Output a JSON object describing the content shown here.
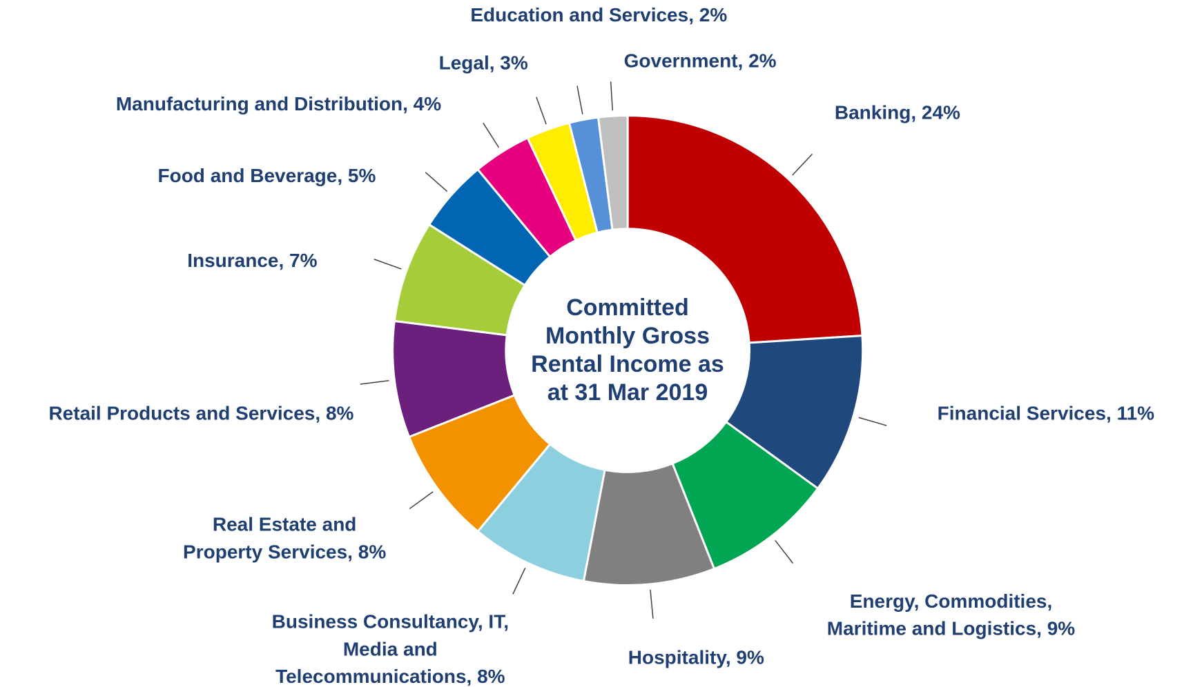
{
  "chart_data": {
    "type": "donut",
    "title": "Committed Monthly Gross Rental Income as at 31 Mar 2019",
    "values": [
      24,
      11,
      9,
      9,
      8,
      8,
      8,
      7,
      5,
      4,
      3,
      2,
      2
    ],
    "value_labels": [
      [
        "Banking, 24%"
      ],
      [
        "Financial Services, 11%"
      ],
      [
        "Energy, Commodities,",
        "Maritime and Logistics, 9%"
      ],
      [
        "Hospitality, 9%"
      ],
      [
        "Business Consultancy, IT,",
        "Media and",
        "Telecommunications, 8%"
      ],
      [
        "Real Estate and",
        "Property Services, 8%"
      ],
      [
        "Retail Products and Services, 8%"
      ],
      [
        "Insurance, 7%"
      ],
      [
        "Food and Beverage, 5%"
      ],
      [
        "Manufacturing and Distribution, 4%"
      ],
      [
        "Legal, 3%"
      ],
      [
        "Education and Services, 2%"
      ],
      [
        "Government, 2%"
      ]
    ],
    "colors": [
      "#c00000",
      "#1f497d",
      "#00a651",
      "#808080",
      "#8ccfdf",
      "#f39200",
      "#6d1f7e",
      "#a5cd39",
      "#0066b3",
      "#e6007e",
      "#ffed00",
      "#5590d9",
      "#bfbfbf"
    ]
  }
}
